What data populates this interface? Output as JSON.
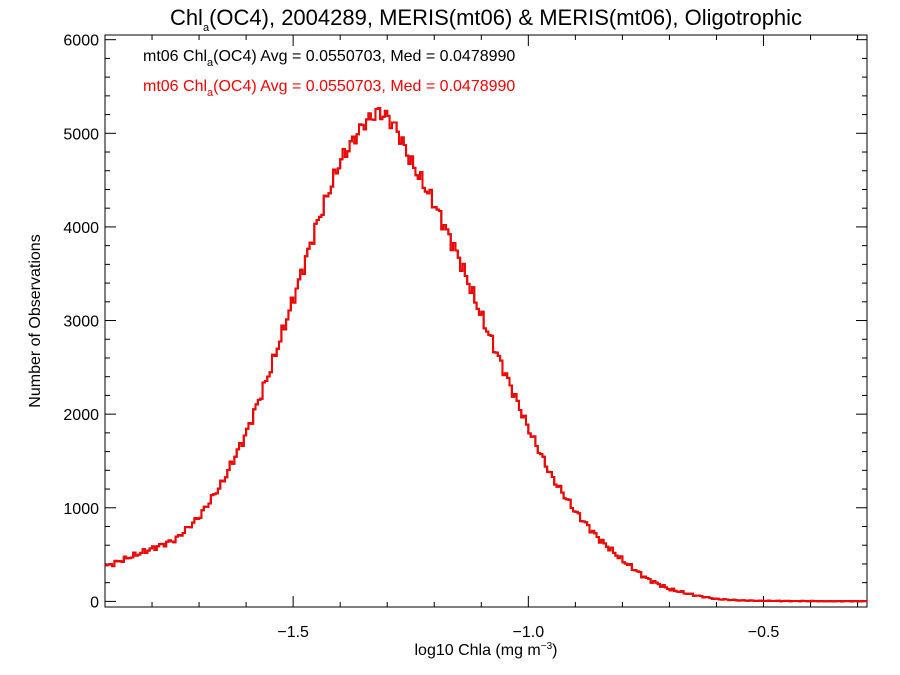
{
  "chart_data": {
    "type": "histogram",
    "title": {
      "prefix": "Chl",
      "subscript": "a",
      "rest": "(OC4), 2004289, MERIS(mt06) & MERIS(mt06), Oligotrophic"
    },
    "xlabel": {
      "text": "log10 Chla (mg m",
      "superscript": "−3",
      "suffix": ")"
    },
    "ylabel": "Number of Observations",
    "xlim": [
      -1.9,
      -0.28
    ],
    "ylim": [
      -60,
      6050
    ],
    "x_ticks": [
      -1.5,
      -1.0,
      -0.5
    ],
    "x_tick_labels": [
      "−1.5",
      "−1.0",
      "−0.5"
    ],
    "y_ticks": [
      0,
      1000,
      2000,
      3000,
      4000,
      5000,
      6000
    ],
    "y_tick_labels": [
      "0",
      "1000",
      "2000",
      "3000",
      "4000",
      "5000",
      "6000"
    ],
    "x_minor_step": 0.1,
    "y_minor_step": 200,
    "grid": false,
    "legend": [
      {
        "color": "#000000",
        "prefix": "mt06 Chl",
        "subscript": "a",
        "rest": "(OC4) Avg = 0.0550703, Med = 0.0478990"
      },
      {
        "color": "#ff0000",
        "prefix": "mt06 Chl",
        "subscript": "a",
        "rest": "(OC4) Avg = 0.0550703, Med = 0.0478990"
      }
    ],
    "series": [
      {
        "color": "#000000",
        "x": [
          -1.9,
          -1.75,
          -1.7,
          -1.65,
          -1.6,
          -1.55,
          -1.5,
          -1.45,
          -1.4,
          -1.35,
          -1.32,
          -1.3,
          -1.28,
          -1.25,
          -1.2,
          -1.15,
          -1.1,
          -1.05,
          -1.0,
          -0.95,
          -0.9,
          -0.85,
          -0.8,
          -0.75,
          -0.7,
          -0.65,
          -0.6,
          -0.55,
          -0.5,
          -0.45,
          -0.4,
          -0.35,
          -0.28
        ],
        "y": [
          370,
          660,
          900,
          1270,
          1790,
          2450,
          3220,
          4020,
          4700,
          5100,
          5230,
          5180,
          5050,
          4700,
          4250,
          3700,
          3050,
          2450,
          1850,
          1330,
          960,
          670,
          440,
          250,
          130,
          70,
          25,
          10,
          6,
          4,
          3,
          2,
          2
        ]
      },
      {
        "color": "#ff0000",
        "x": [
          -1.9,
          -1.75,
          -1.7,
          -1.65,
          -1.6,
          -1.55,
          -1.5,
          -1.45,
          -1.4,
          -1.35,
          -1.32,
          -1.3,
          -1.28,
          -1.25,
          -1.2,
          -1.15,
          -1.1,
          -1.05,
          -1.0,
          -0.95,
          -0.9,
          -0.85,
          -0.8,
          -0.75,
          -0.7,
          -0.65,
          -0.6,
          -0.55,
          -0.5,
          -0.45,
          -0.4,
          -0.35,
          -0.28
        ],
        "y": [
          370,
          660,
          900,
          1270,
          1790,
          2450,
          3220,
          4020,
          4700,
          5100,
          5230,
          5180,
          5050,
          4700,
          4250,
          3700,
          3050,
          2450,
          1850,
          1330,
          960,
          670,
          440,
          250,
          130,
          70,
          25,
          10,
          6,
          4,
          3,
          2,
          2
        ]
      }
    ]
  }
}
